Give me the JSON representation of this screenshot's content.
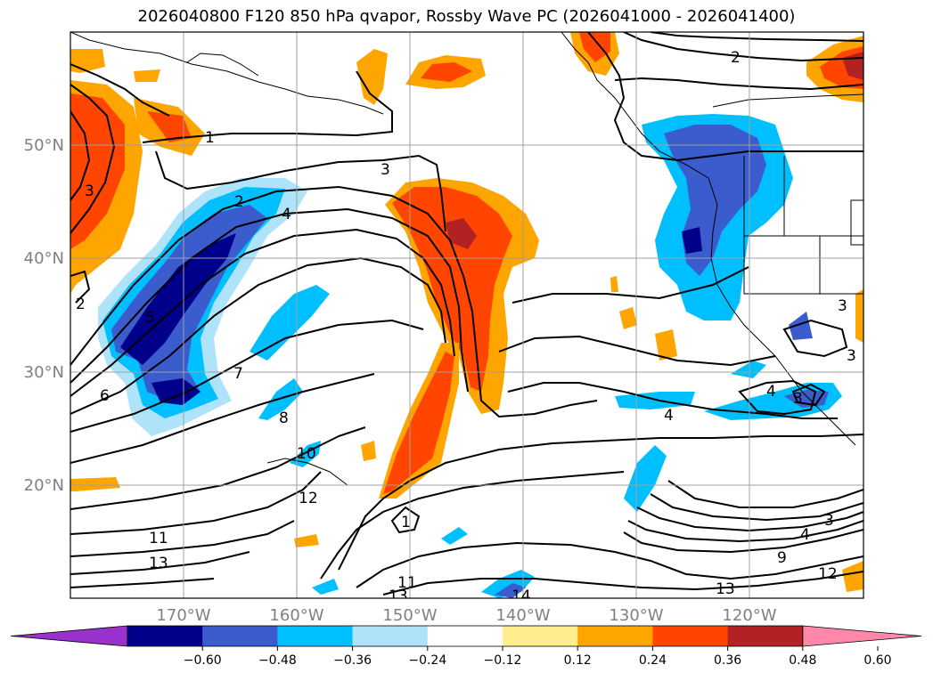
{
  "title": "2026040800 F120 850 hPa qvapor, Rossby Wave PC (2026041000 - 2026041400)",
  "lat_labels": [
    "50°N",
    "40°N",
    "30°N",
    "20°N"
  ],
  "lon_labels": [
    "170°W",
    "160°W",
    "150°W",
    "140°W",
    "130°W",
    "120°W"
  ],
  "colorbar": {
    "ticks": [
      "−0.60",
      "−0.48",
      "−0.36",
      "−0.24",
      "−0.12",
      "0.12",
      "0.24",
      "0.36",
      "0.48",
      "0.60"
    ],
    "colors": [
      "#9932cc",
      "#00008b",
      "#3a5ccc",
      "#00bfff",
      "#afe3fa",
      "#ffffff",
      "#ffee90",
      "#ffa500",
      "#ff4500",
      "#b22222",
      "#ff88aa"
    ]
  },
  "contour_labels": [
    "1",
    "2",
    "3",
    "4",
    "5",
    "6",
    "7",
    "8",
    "10",
    "12",
    "11",
    "13",
    "2",
    "3",
    "4",
    "2",
    "4",
    "3",
    "3",
    "3",
    "4",
    "9",
    "12",
    "13",
    "11",
    "13",
    "14",
    "1",
    "3"
  ]
}
